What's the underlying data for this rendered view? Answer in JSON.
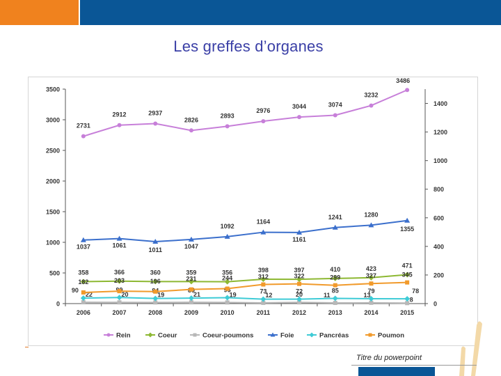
{
  "header": {
    "title": "Les greffes d’organes"
  },
  "footer": {
    "text": "Titre du powerpoint"
  },
  "chart_data": {
    "type": "line",
    "title": "Les greffes d’organes",
    "categories": [
      "2006",
      "2007",
      "2008",
      "2009",
      "2010",
      "2011",
      "2012",
      "2013",
      "2014",
      "2015"
    ],
    "left_axis": {
      "ylim": [
        0,
        3500
      ],
      "ticks": [
        0,
        500,
        1000,
        1500,
        2000,
        2500,
        3000,
        3500
      ]
    },
    "right_axis": {
      "ylim": [
        0,
        1500
      ],
      "ticks": [
        0,
        200,
        400,
        600,
        800,
        1000,
        1200,
        1400
      ]
    },
    "legend_position": "bottom",
    "series": [
      {
        "name": "Rein",
        "axis": "left",
        "color": "#c77fd9",
        "marker": "circle",
        "values": [
          2731,
          2912,
          2937,
          2826,
          2893,
          2976,
          3044,
          3074,
          3232,
          3486
        ],
        "labels": [
          "2731",
          "2912",
          "2937",
          "2826",
          "2893",
          "2976",
          "3044",
          "3074",
          "3232",
          "3486"
        ]
      },
      {
        "name": "Coeur",
        "axis": "left",
        "color": "#8db832",
        "marker": "diamond",
        "values": [
          358,
          366,
          360,
          359,
          356,
          398,
          397,
          410,
          423,
          471
        ],
        "labels": [
          "358",
          "366",
          "360",
          "359",
          "356",
          "398",
          "397",
          "410",
          "423",
          "471"
        ]
      },
      {
        "name": "Coeur-poumons",
        "axis": "left",
        "color": "#b8b8b8",
        "marker": "square",
        "values": [
          22,
          20,
          19,
          21,
          19,
          12,
          20,
          11,
          13,
          8
        ],
        "labels": [
          "22",
          "20",
          "19",
          "21",
          "19",
          "12",
          "20",
          "11",
          "13",
          "8"
        ]
      },
      {
        "name": "Foie",
        "axis": "left",
        "color": "#3b6fcc",
        "marker": "triangle",
        "values": [
          1037,
          1061,
          1011,
          1047,
          1092,
          1164,
          1161,
          1241,
          1280,
          1355
        ],
        "labels": [
          "1037",
          "1061",
          "1011",
          "1047",
          "1092",
          "1164",
          "1161",
          "1241",
          "1280",
          "1355"
        ]
      },
      {
        "name": "Pancréas",
        "axis": "left",
        "color": "#3ecbd6",
        "marker": "diamond",
        "values": [
          90,
          99,
          84,
          89,
          96,
          73,
          72,
          85,
          79,
          78
        ],
        "labels": [
          "90",
          "99",
          "84",
          "89",
          "96",
          "73",
          "72",
          "85",
          "79",
          "78"
        ]
      },
      {
        "name": "Poumon",
        "axis": "left",
        "color": "#f19a2b",
        "marker": "square",
        "values": [
          182,
          203,
          196,
          231,
          244,
          312,
          322,
          299,
          327,
          345
        ],
        "labels": [
          "182",
          "203",
          "196",
          "231",
          "244",
          "312",
          "322",
          "299",
          "327",
          "345"
        ]
      }
    ]
  }
}
